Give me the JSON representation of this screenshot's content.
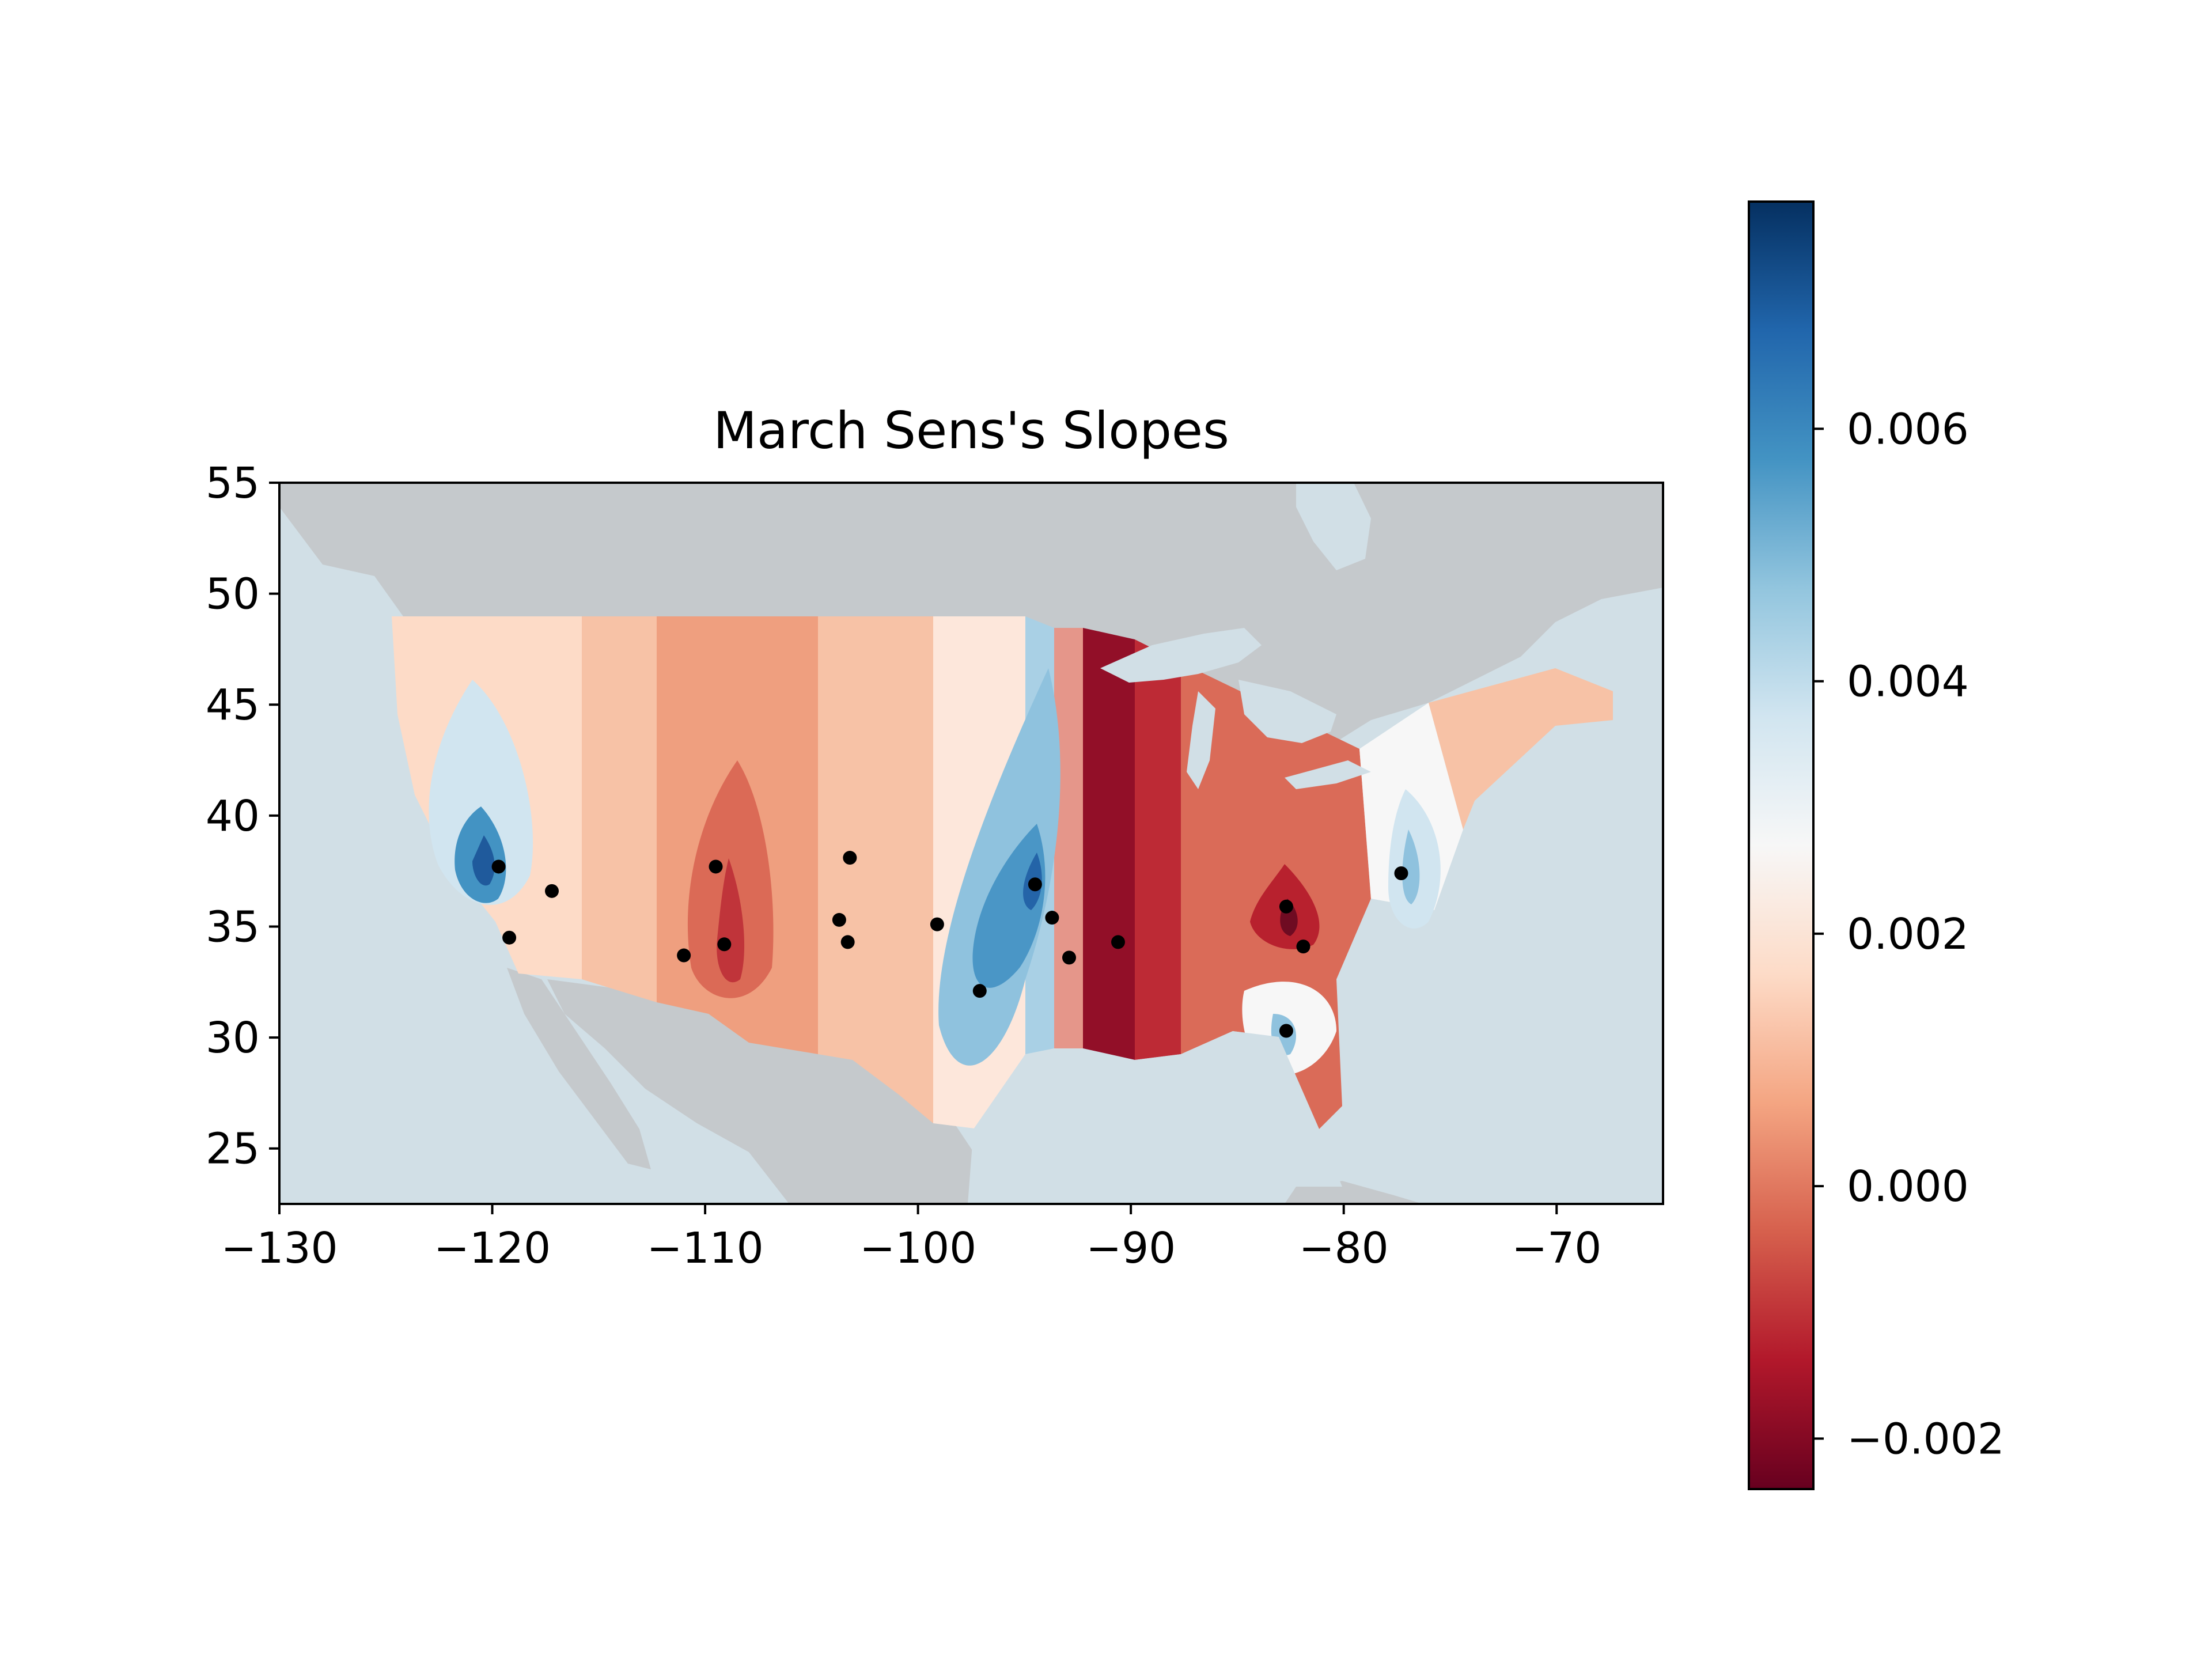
{
  "chart_data": {
    "type": "heatmap",
    "title": "March Sens's Slopes",
    "xlabel": "",
    "ylabel": "",
    "xlim": [
      -130,
      -65
    ],
    "ylim": [
      22.5,
      55
    ],
    "x_ticks": [
      "−130",
      "−120",
      "−110",
      "−100",
      "−90",
      "−80",
      "−70"
    ],
    "y_ticks": [
      "25",
      "30",
      "35",
      "40",
      "45",
      "50",
      "55"
    ],
    "x_tick_values": [
      -130,
      -120,
      -110,
      -100,
      -90,
      -80,
      -70
    ],
    "y_tick_values": [
      25,
      30,
      35,
      40,
      45,
      50,
      55
    ],
    "colorbar": {
      "range": [
        -0.0024,
        0.0078
      ],
      "tick_values": [
        -0.002,
        0.0,
        0.002,
        0.004,
        0.006
      ],
      "tick_labels": [
        "−0.002",
        "0.000",
        "0.002",
        "0.004",
        "0.006"
      ],
      "colormap": "RdBu"
    },
    "colors": {
      "land": "#c5c9cc",
      "water": "#d1dfe6",
      "points": "#000000"
    },
    "contour_bands": [
      {
        "lon_range": [
          -125,
          -116
        ],
        "approx_value": 0.0023
      },
      {
        "lon_range": [
          -116,
          -111
        ],
        "approx_value": 0.0015
      },
      {
        "lon_range": [
          -111,
          -104
        ],
        "approx_value": 0.0008
      },
      {
        "lon_range": [
          -104,
          -100
        ],
        "approx_value": 0.0012
      },
      {
        "lon_range": [
          -100,
          -96
        ],
        "approx_value": 0.0021
      },
      {
        "lon_range": [
          -96,
          -93.5
        ],
        "approx_value": 0.0032
      },
      {
        "lon_range": [
          -93.5,
          -92
        ],
        "approx_value": 0.0005
      },
      {
        "lon_range": [
          -92,
          -88
        ],
        "approx_value": -0.0019
      },
      {
        "lon_range": [
          -88,
          -85
        ],
        "approx_value": -0.0009
      },
      {
        "lon_range": [
          -85,
          -78
        ],
        "approx_value": 0.0
      },
      {
        "lon_range": [
          -78,
          -74
        ],
        "approx_value": 0.0025
      },
      {
        "lon_range": [
          -74,
          -67
        ],
        "approx_value": 0.0013
      }
    ],
    "stations": [
      {
        "lon": -119.7,
        "lat": 37.7,
        "value": 0.0075
      },
      {
        "lon": -119.2,
        "lat": 34.5,
        "value": 0.0035
      },
      {
        "lon": -117.2,
        "lat": 36.6,
        "value": 0.0013
      },
      {
        "lon": -109.5,
        "lat": 37.7,
        "value": 0.0005
      },
      {
        "lon": -111.0,
        "lat": 33.7,
        "value": 0.001
      },
      {
        "lon": -109.1,
        "lat": 34.2,
        "value": -0.001
      },
      {
        "lon": -103.7,
        "lat": 35.3,
        "value": 0.0008
      },
      {
        "lon": -103.3,
        "lat": 34.3,
        "value": 0.0009
      },
      {
        "lon": -103.2,
        "lat": 38.1,
        "value": 0.0011
      },
      {
        "lon": -99.1,
        "lat": 35.1,
        "value": 0.0024
      },
      {
        "lon": -97.1,
        "lat": 32.1,
        "value": 0.0065
      },
      {
        "lon": -94.5,
        "lat": 36.9,
        "value": 0.0072
      },
      {
        "lon": -93.7,
        "lat": 35.4,
        "value": 0.0038
      },
      {
        "lon": -92.9,
        "lat": 33.6,
        "value": 0.001
      },
      {
        "lon": -90.6,
        "lat": 34.3,
        "value": -0.0019
      },
      {
        "lon": -82.7,
        "lat": 35.9,
        "value": -0.0022
      },
      {
        "lon": -81.9,
        "lat": 34.1,
        "value": -0.0008
      },
      {
        "lon": -82.7,
        "lat": 30.3,
        "value": 0.005
      },
      {
        "lon": -77.3,
        "lat": 37.4,
        "value": 0.006
      }
    ]
  }
}
